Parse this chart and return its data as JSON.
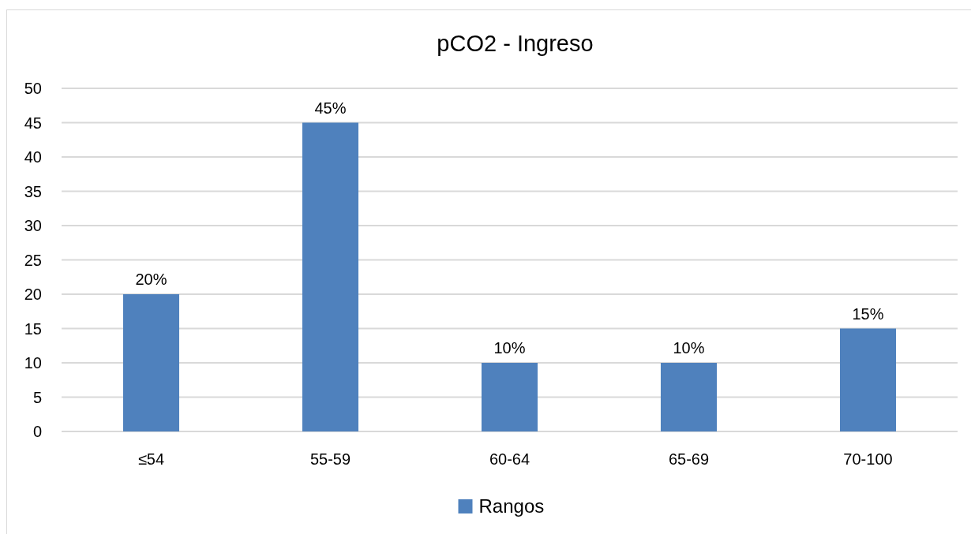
{
  "chart_data": {
    "type": "bar",
    "title": "pCO2 - Ingreso",
    "categories": [
      "≤54",
      "55-59",
      "60-64",
      "65-69",
      "70-100"
    ],
    "series": [
      {
        "name": "Rangos",
        "color": "#4f81bd",
        "values": [
          20,
          45,
          10,
          10,
          15
        ],
        "value_labels": [
          "20%",
          "45%",
          "10%",
          "10%",
          "15%"
        ]
      }
    ],
    "ylim": [
      0,
      50
    ],
    "yticks": [
      0,
      5,
      10,
      15,
      20,
      25,
      30,
      35,
      40,
      45,
      50
    ],
    "grid": "y",
    "legend": "bottom"
  }
}
